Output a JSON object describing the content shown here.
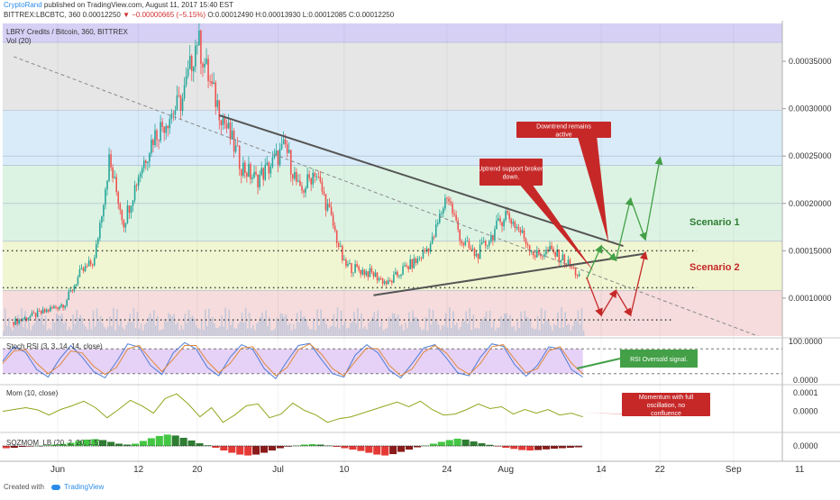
{
  "header": {
    "author": "CryptoRand",
    "published": "published on TradingView.com, August 11, 2017 15:40 EST",
    "symbol": "BITTREX:LBCBTC, 360",
    "last": "0.00012250",
    "change": "▼ −0.00000665 (−5.15%)",
    "ohlc": "O:0.00012490 H:0.00013930 L:0.00012085 C:0.00012250"
  },
  "footer": {
    "created_with": "Created with",
    "brand": "TradingView"
  },
  "colors": {
    "zone_purple": "#d6d0f5",
    "zone_gray": "#e6e6e6",
    "zone_blue": "#d9ebf8",
    "zone_green": "#dcf3e3",
    "zone_yellow": "#f1f6d2",
    "zone_red": "#f6dcdc",
    "up": "#26a69a",
    "down": "#ef5350",
    "callout_red": "#c62828",
    "callout_green": "#43a047",
    "scenario1": "#2e7d32",
    "scenario2": "#c62828"
  },
  "chart_data": [
    {
      "type": "candlestick",
      "title": "LBRY Credits / Bitcoin, 360, BITTREX",
      "subtitle": "Vol (20)",
      "ylim": [
        6e-05,
        0.00039
      ],
      "y_ticks": [
        "0.00035000",
        "0.00030000",
        "0.00025000",
        "0.00020000",
        "0.00015000",
        "0.00010000"
      ],
      "y_tick_values": [
        0.00035,
        0.0003,
        0.00025,
        0.0002,
        0.00015,
        0.0001
      ],
      "x_ticks": [
        "Jun",
        "12",
        "20",
        "Jul",
        "10",
        "24",
        "Aug",
        "14",
        "22",
        "Sep",
        "11"
      ],
      "x_tick_days": [
        0,
        11,
        19,
        30,
        39,
        53,
        61,
        74,
        82,
        92,
        101
      ],
      "price_path": [
        [
          -6,
          7.5e-05
        ],
        [
          -2,
          8.5e-05
        ],
        [
          1,
          9.5e-05
        ],
        [
          3,
          0.000125
        ],
        [
          5,
          0.00014
        ],
        [
          7,
          0.000245
        ],
        [
          9,
          0.00018
        ],
        [
          11,
          0.00023
        ],
        [
          13,
          0.00027
        ],
        [
          15,
          0.00029
        ],
        [
          17,
          0.00031
        ],
        [
          19,
          0.000375
        ],
        [
          21,
          0.00032
        ],
        [
          23,
          0.00028
        ],
        [
          25,
          0.00024
        ],
        [
          27,
          0.000225
        ],
        [
          29,
          0.00024
        ],
        [
          31,
          0.00026
        ],
        [
          33,
          0.00021
        ],
        [
          35,
          0.000235
        ],
        [
          37,
          0.00019
        ],
        [
          39,
          0.000135
        ],
        [
          41,
          0.00013
        ],
        [
          43,
          0.000125
        ],
        [
          45,
          0.000115
        ],
        [
          47,
          0.00013
        ],
        [
          49,
          0.00014
        ],
        [
          51,
          0.00016
        ],
        [
          53,
          0.00021
        ],
        [
          55,
          0.00016
        ],
        [
          57,
          0.000145
        ],
        [
          59,
          0.000165
        ],
        [
          61,
          0.00019
        ],
        [
          63,
          0.00017
        ],
        [
          65,
          0.000145
        ],
        [
          67,
          0.00015
        ],
        [
          69,
          0.00014
        ],
        [
          71,
          0.000123
        ]
      ],
      "fib_zones": [
        {
          "from": 0.00037,
          "to": 0.00039,
          "color": "zone_purple"
        },
        {
          "from": 0.000298,
          "to": 0.00037,
          "color": "zone_gray"
        },
        {
          "from": 0.00024,
          "to": 0.000298,
          "color": "zone_blue"
        },
        {
          "from": 0.00016,
          "to": 0.00024,
          "color": "zone_green"
        },
        {
          "from": 0.000108,
          "to": 0.00016,
          "color": "zone_yellow"
        },
        {
          "from": 6e-05,
          "to": 0.000108,
          "color": "zone_red"
        }
      ],
      "fib_lines": [
        0.00037,
        0.000298,
        0.00025,
        0.00024,
        0.0002,
        0.00016,
        0.000108
      ],
      "support_levels": [
        0.00015,
        0.000111,
        7.7e-05
      ],
      "trendlines": {
        "downtrend": [
          [
            22,
            0.000293
          ],
          [
            77,
            0.000155
          ]
        ],
        "uptrend": [
          [
            43,
            0.000103
          ],
          [
            80,
            0.000147
          ]
        ],
        "long_dashed": [
          [
            -6,
            0.000355
          ],
          [
            96,
            5.8e-05
          ]
        ]
      },
      "scenario_1_path": [
        [
          72,
          0.00012
        ],
        [
          74,
          0.000155
        ],
        [
          76,
          0.00014
        ],
        [
          78,
          0.000205
        ],
        [
          80,
          0.000162
        ],
        [
          82,
          0.000248
        ]
      ],
      "scenario_2_path": [
        [
          72,
          0.000122
        ],
        [
          74,
          8.2e-05
        ],
        [
          76,
          0.000108
        ],
        [
          78,
          8.2e-05
        ],
        [
          80,
          0.000148
        ]
      ],
      "annotations": [
        {
          "text": "Downtrend remains active",
          "style": "callout_red",
          "target": [
            75,
            0.000158
          ]
        },
        {
          "text": "Uptrend support broken down.",
          "style": "callout_red",
          "target": [
            73,
            0.000128
          ]
        },
        {
          "text": "Scenario 1",
          "style": "scenario1"
        },
        {
          "text": "Scenario 2",
          "style": "scenario2"
        }
      ]
    },
    {
      "type": "line",
      "title": "Stoch RSI (3, 3, 14, 14, close)",
      "ylim": [
        0,
        100
      ],
      "y_ticks": [
        "100.0000",
        "0.0000"
      ],
      "bands": [
        80,
        20
      ],
      "series": [
        {
          "name": "K",
          "color": "#4d7cd6",
          "values": [
            50,
            85,
            72,
            30,
            12,
            55,
            88,
            60,
            25,
            10,
            48,
            92,
            84,
            40,
            18,
            70,
            95,
            80,
            35,
            15,
            60,
            90,
            78,
            32,
            8,
            50,
            88,
            93,
            55,
            20,
            12,
            65,
            90,
            70,
            28,
            10,
            45,
            82,
            90,
            58,
            22,
            15,
            60,
            92,
            86,
            42,
            14,
            40,
            85,
            80,
            30,
            12
          ]
        },
        {
          "name": "D",
          "color": "#e0883a",
          "values": [
            45,
            75,
            78,
            45,
            20,
            40,
            75,
            70,
            38,
            18,
            35,
            80,
            88,
            55,
            25,
            55,
            88,
            88,
            50,
            22,
            45,
            82,
            85,
            45,
            15,
            35,
            78,
            92,
            68,
            32,
            15,
            50,
            82,
            80,
            40,
            15,
            32,
            72,
            88,
            70,
            35,
            18,
            45,
            85,
            90,
            55,
            22,
            32,
            75,
            85,
            45,
            20
          ]
        }
      ],
      "annotations": [
        {
          "text": "RSI Oversold signal.",
          "style": "callout_green",
          "target": [
            74,
            8
          ]
        }
      ]
    },
    {
      "type": "line",
      "title": "Mom (10, close)",
      "ylim": [
        -0.0001,
        0.00013
      ],
      "y_ticks": [
        "0.0001",
        "0.0000"
      ],
      "series": [
        {
          "name": "Mom",
          "color": "#8fa81e",
          "values": [
            0,
            1e-05,
            2e-05,
            8e-06,
            -2e-05,
            1e-05,
            3e-05,
            5.5e-05,
            2e-05,
            -3.5e-05,
            1e-05,
            6e-05,
            3e-05,
            -1e-05,
            7e-05,
            9.5e-05,
            4e-05,
            -3e-05,
            2e-05,
            -6e-05,
            -2e-05,
            3e-05,
            4e-05,
            -3.5e-05,
            -1.5e-05,
            4.5e-05,
            5e-06,
            -2e-05,
            -6e-05,
            -4e-05,
            -3e-05,
            -1e-05,
            1e-05,
            3e-05,
            5e-05,
            2.5e-05,
            5.5e-05,
            1e-05,
            -2e-05,
            -1.5e-05,
            1e-05,
            4e-05,
            1.5e-05,
            2.5e-05,
            -1.5e-05,
            1e-05,
            -1e-05,
            1e-05,
            -2e-05,
            -1e-05,
            -3e-05
          ]
        }
      ],
      "annotations": [
        {
          "text": "Momentum with full oscillation, no confluence",
          "style": "callout_red",
          "target": [
            74,
            -8e-06
          ]
        }
      ]
    },
    {
      "type": "bar",
      "title": "SQZMOM_LB (20, 2, 20, 1.5)",
      "y_ticks": [
        "0.0000"
      ],
      "colors": {
        "pos_strong": "#43c743",
        "pos_weak": "#2e7d32",
        "neg_strong": "#e53935",
        "neg_weak": "#8b1a1a"
      },
      "values": [
        -0.1,
        -0.08,
        -0.04,
        -0.02,
        0.01,
        0.03,
        0.06,
        0.09,
        0.14,
        0.22,
        0.28,
        0.3,
        0.26,
        0.18,
        0.1,
        0.06,
        0.1,
        0.22,
        0.34,
        0.44,
        0.5,
        0.46,
        0.36,
        0.24,
        0.12,
        0.03,
        -0.08,
        -0.2,
        -0.3,
        -0.38,
        -0.42,
        -0.38,
        -0.3,
        -0.2,
        -0.1,
        -0.03,
        0.02,
        0.06,
        0.08,
        0.06,
        0.02,
        -0.04,
        -0.1,
        -0.16,
        -0.22,
        -0.3,
        -0.38,
        -0.42,
        -0.36,
        -0.26,
        -0.16,
        -0.06,
        0.02,
        0.1,
        0.18,
        0.26,
        0.32,
        0.28,
        0.2,
        0.12,
        0.05,
        -0.02,
        -0.08,
        -0.13,
        -0.18,
        -0.2,
        -0.18,
        -0.15,
        -0.12,
        -0.1,
        -0.08,
        -0.06
      ]
    }
  ]
}
